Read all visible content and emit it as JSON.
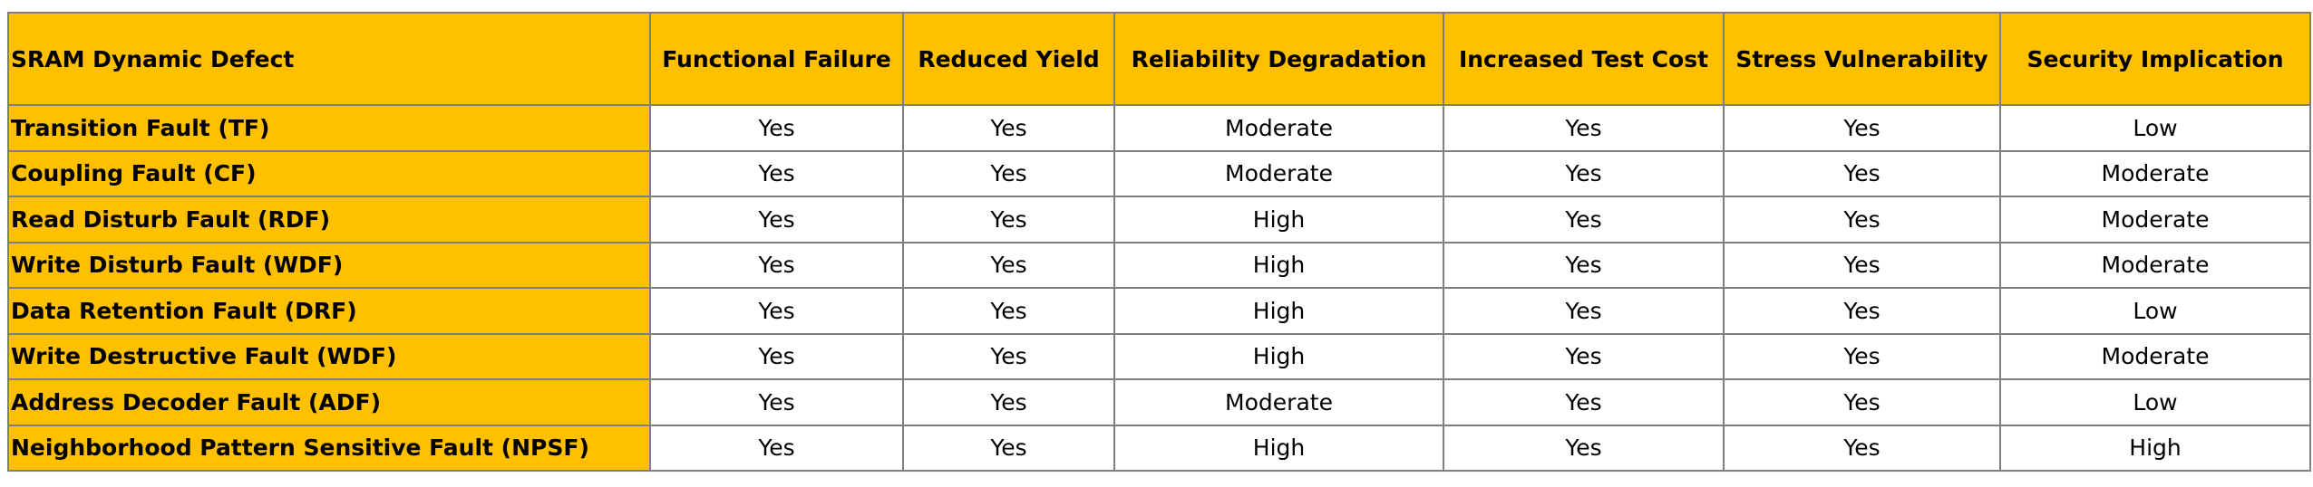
{
  "colors": {
    "header_bg": "#ffc000",
    "border": "#7f7f7f",
    "cell_bg": "#ffffff"
  },
  "table": {
    "headers": [
      "SRAM Dynamic Defect",
      "Functional Failure",
      "Reduced Yield",
      "Reliability Degradation",
      "Increased Test Cost",
      "Stress Vulnerability",
      "Security Implication"
    ],
    "rows": [
      [
        "Transition Fault (TF)",
        "Yes",
        "Yes",
        "Moderate",
        "Yes",
        "Yes",
        "Low"
      ],
      [
        "Coupling Fault (CF)",
        "Yes",
        "Yes",
        "Moderate",
        "Yes",
        "Yes",
        "Moderate"
      ],
      [
        "Read Disturb Fault (RDF)",
        "Yes",
        "Yes",
        "High",
        "Yes",
        "Yes",
        "Moderate"
      ],
      [
        "Write Disturb Fault (WDF)",
        "Yes",
        "Yes",
        "High",
        "Yes",
        "Yes",
        "Moderate"
      ],
      [
        "Data Retention Fault (DRF)",
        "Yes",
        "Yes",
        "High",
        "Yes",
        "Yes",
        "Low"
      ],
      [
        "Write Destructive Fault (WDF)",
        "Yes",
        "Yes",
        "High",
        "Yes",
        "Yes",
        "Moderate"
      ],
      [
        "Address Decoder Fault (ADF)",
        "Yes",
        "Yes",
        "Moderate",
        "Yes",
        "Yes",
        "Low"
      ],
      [
        "Neighborhood Pattern Sensitive Fault (NPSF)",
        "Yes",
        "Yes",
        "High",
        "Yes",
        "Yes",
        "High"
      ]
    ]
  }
}
